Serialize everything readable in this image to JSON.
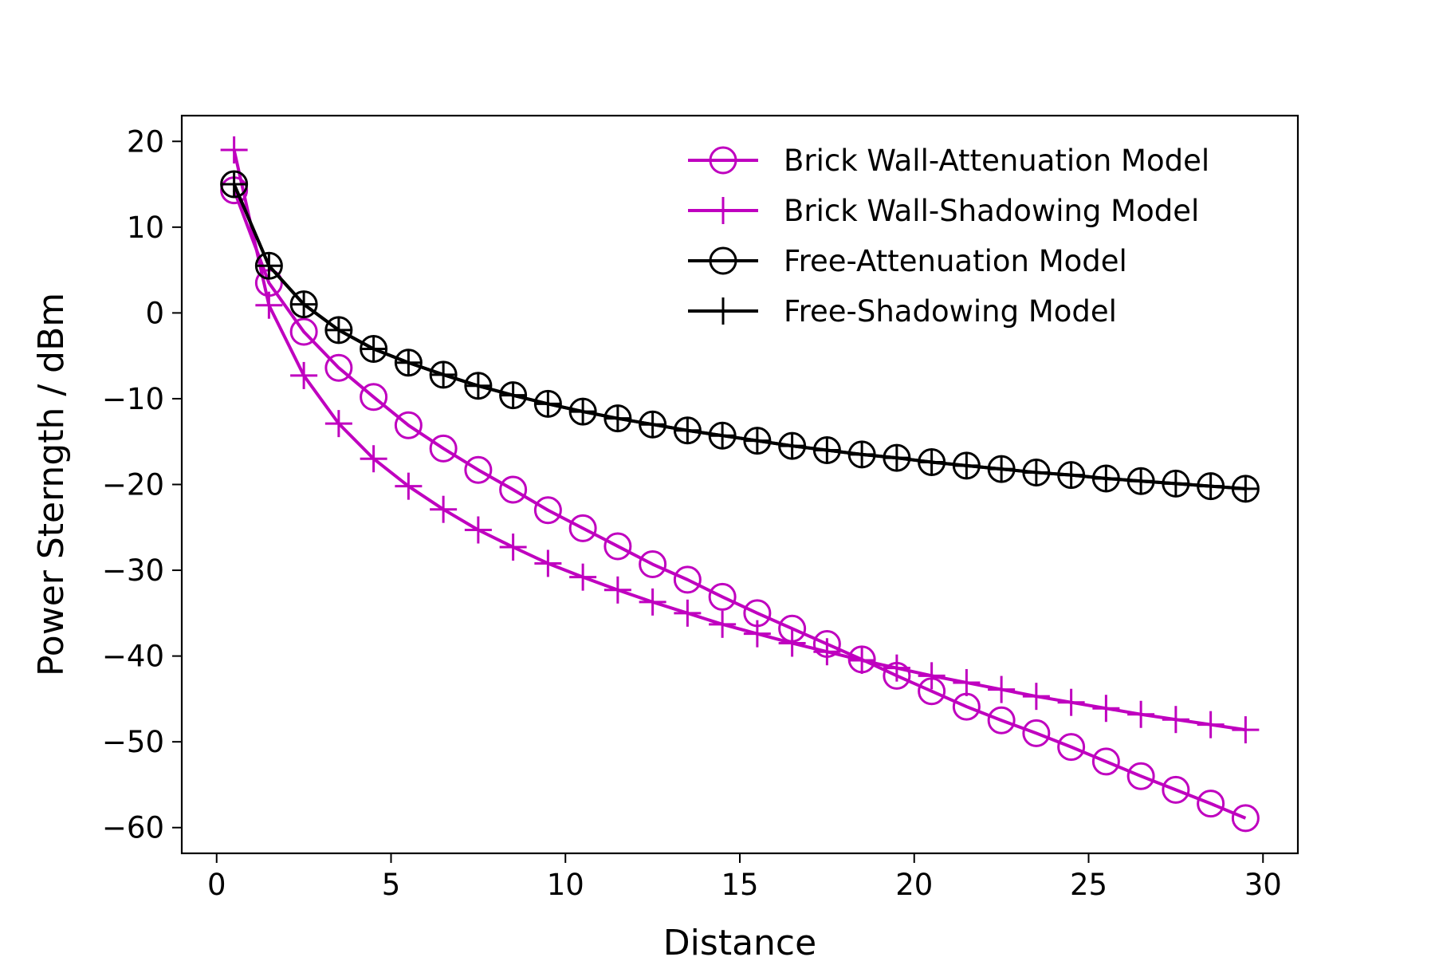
{
  "chart_data": {
    "type": "line",
    "title": "",
    "xlabel": "Distance",
    "ylabel": "Power Sterngth / dBm",
    "xlim": [
      -1,
      31
    ],
    "ylim": [
      -63,
      23
    ],
    "xticks": [
      0,
      5,
      10,
      15,
      20,
      25,
      30
    ],
    "yticks": [
      20,
      10,
      0,
      -10,
      -20,
      -30,
      -40,
      -50,
      -60
    ],
    "xtick_labels": [
      "0",
      "5",
      "10",
      "15",
      "20",
      "25",
      "30"
    ],
    "ytick_labels": [
      "20",
      "10",
      "0",
      "−10",
      "−20",
      "−30",
      "−40",
      "−50",
      "−60"
    ],
    "grid": false,
    "legend_position": "top-right",
    "x": [
      0.5,
      1.5,
      2.5,
      3.5,
      4.5,
      5.5,
      6.5,
      7.5,
      8.5,
      9.5,
      10.5,
      11.5,
      12.5,
      13.5,
      14.5,
      15.5,
      16.5,
      17.5,
      18.5,
      19.5,
      20.5,
      21.5,
      22.5,
      23.5,
      24.5,
      25.5,
      26.5,
      27.5,
      28.5,
      29.5
    ],
    "series": [
      {
        "name": "Brick Wall-Attenuation Model",
        "color": "#bf00bf",
        "marker": "circle",
        "values": [
          14.3,
          3.5,
          -2.2,
          -6.4,
          -9.8,
          -13.1,
          -15.8,
          -18.3,
          -20.6,
          -23.0,
          -25.1,
          -27.2,
          -29.3,
          -31.1,
          -33.1,
          -35.0,
          -36.8,
          -38.6,
          -40.4,
          -42.3,
          -44.1,
          -45.9,
          -47.5,
          -49.0,
          -50.6,
          -52.3,
          -54.0,
          -55.6,
          -57.2,
          -58.9
        ]
      },
      {
        "name": "Brick Wall-Shadowing Model",
        "color": "#bf00bf",
        "marker": "plus",
        "values": [
          19.0,
          0.9,
          -7.3,
          -12.9,
          -17.0,
          -20.2,
          -22.9,
          -25.3,
          -27.3,
          -29.2,
          -30.8,
          -32.3,
          -33.7,
          -35.0,
          -36.3,
          -37.4,
          -38.5,
          -39.5,
          -40.5,
          -41.4,
          -42.3,
          -43.1,
          -43.9,
          -44.7,
          -45.4,
          -46.1,
          -46.8,
          -47.4,
          -48.0,
          -48.6
        ]
      },
      {
        "name": "Free-Attenuation Model",
        "color": "#000000",
        "marker": "circle",
        "values": [
          15.0,
          5.5,
          1.0,
          -2.0,
          -4.2,
          -5.8,
          -7.2,
          -8.5,
          -9.6,
          -10.6,
          -11.5,
          -12.3,
          -13.0,
          -13.7,
          -14.3,
          -14.9,
          -15.5,
          -16.0,
          -16.5,
          -16.9,
          -17.4,
          -17.8,
          -18.2,
          -18.6,
          -18.9,
          -19.3,
          -19.6,
          -19.9,
          -20.2,
          -20.5
        ]
      },
      {
        "name": "Free-Shadowing Model",
        "color": "#000000",
        "marker": "plus",
        "values": [
          15.0,
          5.5,
          1.0,
          -2.0,
          -4.2,
          -5.8,
          -7.2,
          -8.5,
          -9.6,
          -10.6,
          -11.5,
          -12.3,
          -13.0,
          -13.7,
          -14.3,
          -14.9,
          -15.5,
          -16.0,
          -16.5,
          -16.9,
          -17.4,
          -17.8,
          -18.2,
          -18.6,
          -18.9,
          -19.3,
          -19.6,
          -19.9,
          -20.2,
          -20.5
        ]
      }
    ]
  }
}
